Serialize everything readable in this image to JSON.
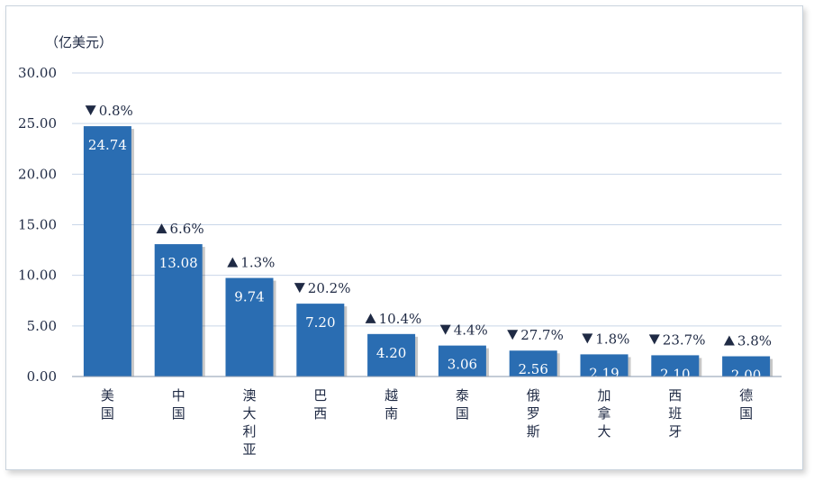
{
  "chart_data": {
    "type": "bar",
    "unit_label": "（亿美元）",
    "categories": [
      "美国",
      "中国",
      "澳大利亚",
      "巴西",
      "越南",
      "泰国",
      "俄罗斯",
      "加拿大",
      "西班牙",
      "德国"
    ],
    "values": [
      24.74,
      13.08,
      9.74,
      7.2,
      4.2,
      3.06,
      2.56,
      2.19,
      2.1,
      2.0
    ],
    "value_labels": [
      "24.74",
      "13.08",
      "9.74",
      "7.20",
      "4.20",
      "3.06",
      "2.56",
      "2.19",
      "2.10",
      "2.00"
    ],
    "changes": [
      {
        "direction": "down",
        "text": "0.8%"
      },
      {
        "direction": "up",
        "text": "6.6%"
      },
      {
        "direction": "up",
        "text": "1.3%"
      },
      {
        "direction": "down",
        "text": "20.2%"
      },
      {
        "direction": "up",
        "text": "10.4%"
      },
      {
        "direction": "down",
        "text": "4.4%"
      },
      {
        "direction": "down",
        "text": "27.7%"
      },
      {
        "direction": "down",
        "text": "1.8%"
      },
      {
        "direction": "down",
        "text": "23.7%"
      },
      {
        "direction": "up",
        "text": "3.8%"
      }
    ],
    "ylim": [
      0,
      30
    ],
    "yticks": [
      "0.00",
      "5.00",
      "10.00",
      "15.00",
      "20.00",
      "25.00",
      "30.00"
    ],
    "grid": true,
    "colors": {
      "bar": "#2a6db2",
      "grid": "#c9d6e8",
      "text": "#1f2a44",
      "axis": "#8a99ad"
    }
  }
}
